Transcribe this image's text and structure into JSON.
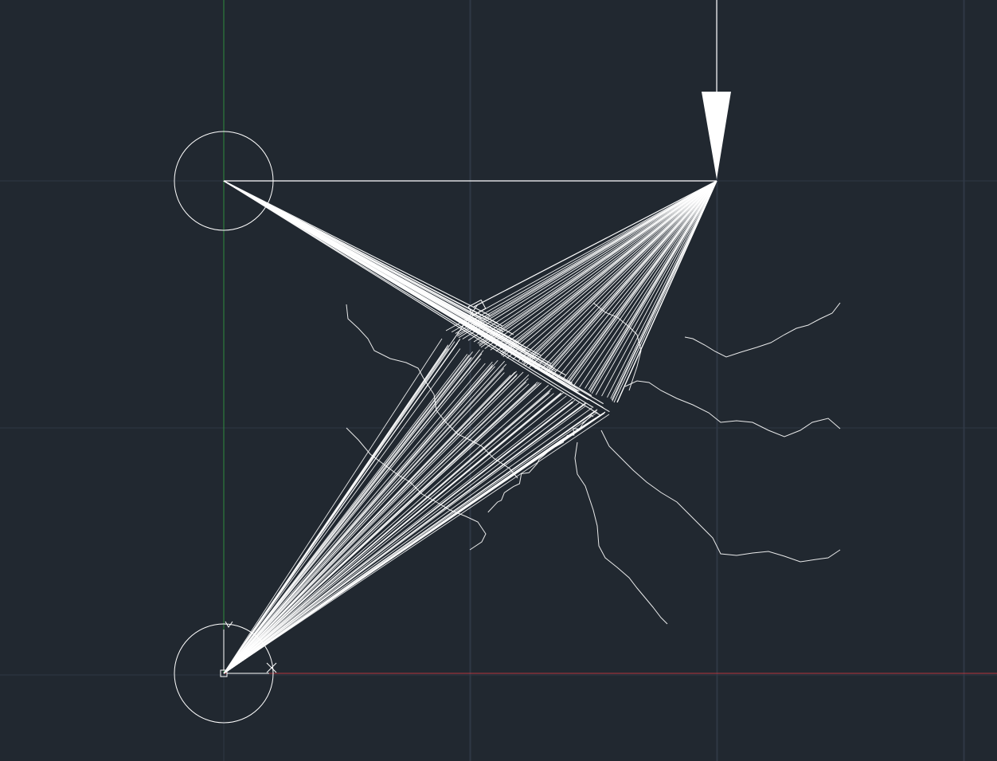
{
  "app": {
    "type": "cad-model-space"
  },
  "colors": {
    "background": "#212830",
    "grid_minor": "#262e38",
    "grid_major": "#2f3845",
    "axis_x": "#b5363e",
    "axis_y": "#2e8b3e",
    "geometry": "#ffffff"
  },
  "icons": {
    "ucs": "ucs-icon",
    "load_arrow": "load-arrow-icon"
  }
}
